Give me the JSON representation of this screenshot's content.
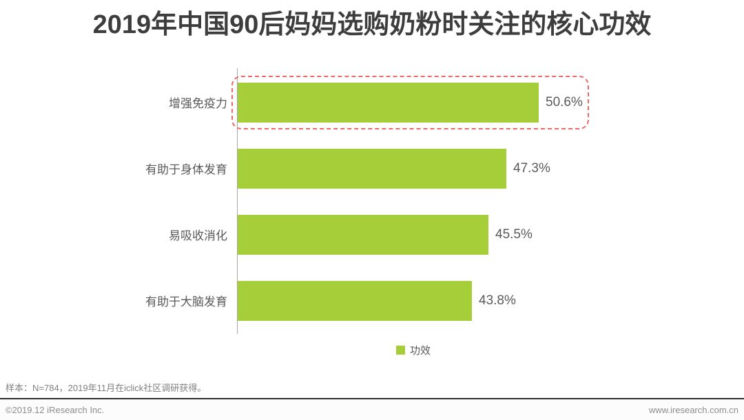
{
  "title": "2019年中国90后妈妈选购奶粉时关注的核心功效",
  "chart_data": {
    "type": "bar",
    "orientation": "horizontal",
    "title": "2019年中国90后妈妈选购奶粉时关注的核心功效",
    "categories": [
      "增强免疫力",
      "有助于身体发育",
      "易吸收消化",
      "有助于大脑发育"
    ],
    "values": [
      50.6,
      47.3,
      45.5,
      43.8
    ],
    "value_labels": [
      "50.6%",
      "47.3%",
      "45.5%",
      "43.8%"
    ],
    "series_name": "功效",
    "xlim": [
      20,
      55
    ],
    "grid": false,
    "legend_position": "bottom-center",
    "bar_color": "#a6ce39",
    "highlight_index": 0,
    "highlight_color": "#ef6666"
  },
  "legend": {
    "label": "功效"
  },
  "footer": {
    "sample_note": "样本：N=784，2019年11月在iclick社区调研获得。",
    "copyright": "©2019.12 iResearch Inc.",
    "website": "www.iresearch.com.cn"
  }
}
